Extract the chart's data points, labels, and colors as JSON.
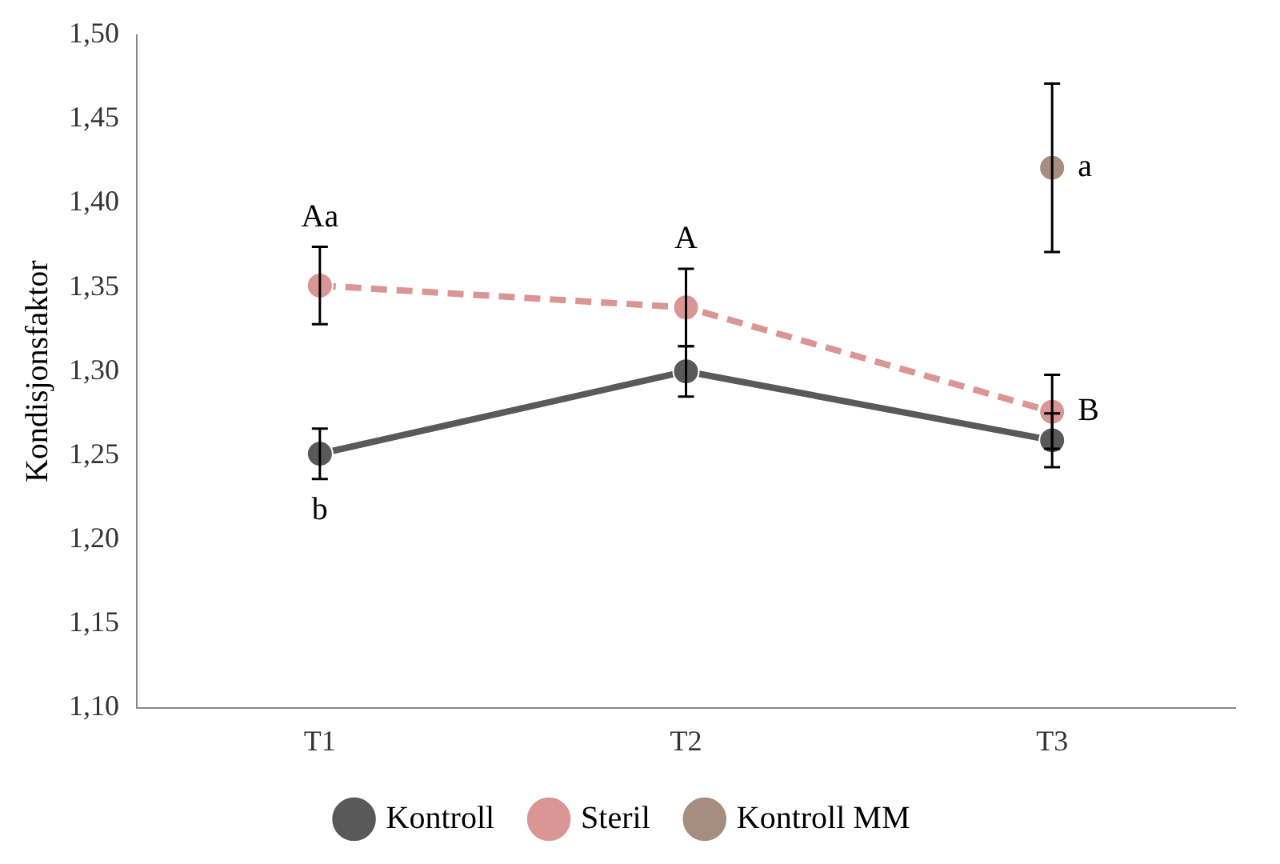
{
  "chart_data": {
    "type": "line",
    "ylabel": "Kondisjonsfaktor",
    "categories": [
      "T1",
      "T2",
      "T3"
    ],
    "series": [
      {
        "name": "Kontroll",
        "color": "#595959",
        "values": [
          1.251,
          1.3,
          1.259
        ],
        "errors": [
          0.015,
          0.015,
          0.016
        ],
        "line_style": "solid"
      },
      {
        "name": "Steril",
        "color": "#d99694",
        "values": [
          1.351,
          1.338,
          1.276
        ],
        "errors": [
          0.023,
          0.023,
          0.022
        ],
        "line_style": "dashed"
      },
      {
        "name": "Kontroll MM",
        "type": "scatter",
        "color": "#a58d7f",
        "values": [
          null,
          null,
          1.421
        ],
        "errors": [
          null,
          null,
          0.05
        ]
      }
    ],
    "ylim": [
      1.1,
      1.5
    ],
    "yticks": [
      {
        "value": 1.1,
        "label": "1,10"
      },
      {
        "value": 1.15,
        "label": "1,15"
      },
      {
        "value": 1.2,
        "label": "1,20"
      },
      {
        "value": 1.25,
        "label": "1,25"
      },
      {
        "value": 1.3,
        "label": "1,30"
      },
      {
        "value": 1.35,
        "label": "1,35"
      },
      {
        "value": 1.4,
        "label": "1,40"
      },
      {
        "value": 1.45,
        "label": "1,45"
      },
      {
        "value": 1.5,
        "label": "1,50"
      }
    ],
    "annotations": [
      {
        "text": "Aa",
        "x": "T1",
        "y": 1.374
      },
      {
        "text": "b",
        "x": "T1",
        "y": 1.236
      },
      {
        "text": "A",
        "x": "T2",
        "y": 1.361
      },
      {
        "text": "B",
        "x": "T3",
        "y": 1.276
      },
      {
        "text": "a",
        "x": "T3",
        "y": 1.421
      }
    ],
    "grid": false,
    "legend": "bottom",
    "marker": "circle"
  }
}
